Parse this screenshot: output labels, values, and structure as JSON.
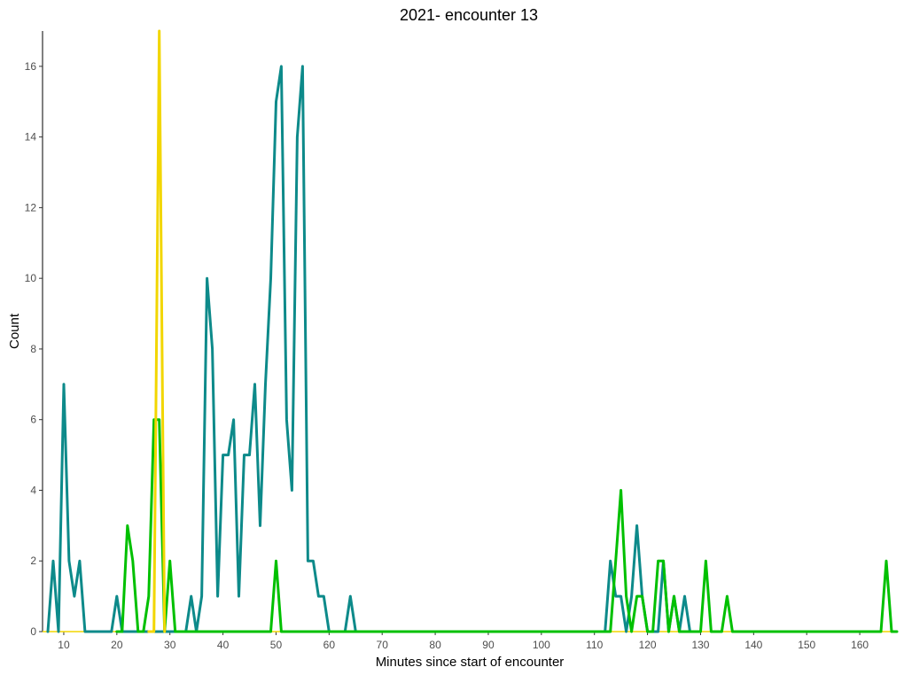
{
  "chart_data": {
    "type": "line",
    "title": "2021- encounter 13",
    "xlabel": "Minutes since start of encounter",
    "ylabel": "Count",
    "xlim": [
      6,
      167
    ],
    "ylim": [
      0,
      17
    ],
    "xticks": [
      10,
      20,
      30,
      40,
      50,
      60,
      70,
      80,
      90,
      100,
      110,
      120,
      130,
      140,
      150,
      160
    ],
    "yticks": [
      0,
      2,
      4,
      6,
      8,
      10,
      12,
      14,
      16
    ],
    "grid": false,
    "legend": "none",
    "baseline_color": "#f2d600",
    "series": [
      {
        "color": "#0d8a8a",
        "x": [
          7,
          8,
          9,
          10,
          11,
          12,
          13,
          14,
          15,
          19,
          20,
          21,
          22,
          23,
          24,
          25,
          26,
          27,
          28,
          29,
          30,
          31,
          32,
          33,
          34,
          35,
          36,
          37,
          38,
          39,
          40,
          41,
          42,
          43,
          44,
          45,
          46,
          47,
          48,
          49,
          50,
          51,
          52,
          53,
          54,
          55,
          56,
          57,
          58,
          59,
          60,
          61,
          62,
          63,
          64,
          65,
          112,
          113,
          114,
          115,
          116,
          117,
          118,
          119,
          120,
          121,
          122,
          123,
          124,
          125,
          126,
          127,
          128
        ],
        "y": [
          0,
          2,
          0,
          7,
          2,
          1,
          2,
          0,
          0,
          0,
          1,
          0,
          0,
          0,
          0,
          0,
          0,
          0,
          0,
          0,
          0,
          0,
          0,
          0,
          1,
          0,
          1,
          10,
          8,
          1,
          5,
          5,
          6,
          1,
          5,
          5,
          7,
          3,
          7,
          10,
          15,
          16,
          6,
          4,
          14,
          16,
          2,
          2,
          1,
          1,
          0,
          0,
          0,
          0,
          1,
          0,
          0,
          2,
          1,
          1,
          0,
          1,
          3,
          1,
          0,
          0,
          0,
          2,
          0,
          1,
          0,
          1,
          0
        ]
      },
      {
        "color": "#00c000",
        "x": [
          20,
          21,
          22,
          23,
          24,
          25,
          26,
          27,
          28,
          29,
          30,
          31,
          48,
          49,
          50,
          51,
          52,
          112,
          113,
          114,
          115,
          116,
          117,
          118,
          119,
          120,
          121,
          122,
          123,
          124,
          125,
          126,
          127,
          129,
          130,
          131,
          132,
          133,
          134,
          135,
          136,
          163,
          164,
          165,
          166,
          167
        ],
        "y": [
          0,
          0,
          3,
          2,
          0,
          0,
          1,
          6,
          6,
          0,
          2,
          0,
          0,
          0,
          2,
          0,
          0,
          0,
          0,
          2,
          4,
          1,
          0,
          1,
          1,
          0,
          0,
          2,
          2,
          0,
          1,
          0,
          0,
          0,
          0,
          2,
          0,
          0,
          0,
          1,
          0,
          0,
          0,
          2,
          0,
          0
        ]
      },
      {
        "color": "#f2d600",
        "x": [
          26,
          27,
          28,
          29
        ],
        "y": [
          0,
          0,
          17,
          0
        ]
      }
    ]
  }
}
